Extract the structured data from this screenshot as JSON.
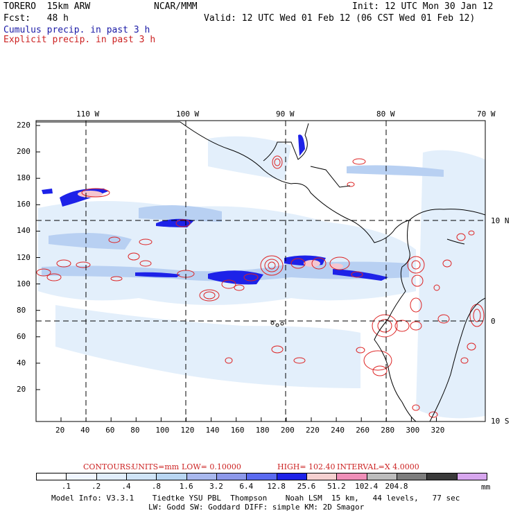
{
  "header": {
    "model": "TORERO  15km ARW",
    "center": "NCAR/MMM",
    "init": "Init: 12 UTC Mon 30 Jan 12",
    "fcst": "Fcst:   48 h",
    "valid": "Valid: 12 UTC Wed 01 Feb 12 (06 CST Wed 01 Feb 12)",
    "legend_cumulus": "Cumulus precip. in past 3 h",
    "legend_explicit": "Explicit precip. in past 3 h"
  },
  "map": {
    "lon_labels": [
      "110 W",
      "100 W",
      "90 W",
      "80 W",
      "70 W"
    ],
    "lat_labels": [
      "10 N",
      "0",
      "10 S"
    ],
    "y_ticks": [
      "220",
      "200",
      "180",
      "160",
      "140",
      "120",
      "100",
      "80",
      "60",
      "40",
      "20"
    ],
    "x_ticks": [
      "20",
      "40",
      "60",
      "80",
      "100",
      "120",
      "140",
      "160",
      "180",
      "200",
      "220",
      "240",
      "260",
      "280",
      "300",
      "320"
    ],
    "colors": {
      "coast": "#000000",
      "grid": "#000000",
      "explicit": "#dd2222"
    }
  },
  "contours_line": {
    "label": "CONTOURS:",
    "units": "UNITS=mm",
    "low": "LOW= 0.10000",
    "high": "HIGH=  102.40",
    "interval": "INTERVAL=X  4.0000"
  },
  "colorbar": {
    "colors": [
      "#ffffff",
      "#f0f6ff",
      "#e1eefc",
      "#cfe4f7",
      "#b8d6f2",
      "#a8b8ee",
      "#8c98ea",
      "#5a6af0",
      "#1d22e8",
      "#f5d0d0",
      "#ef8fb8",
      "#bdbdbd",
      "#7d7d7d",
      "#3a3a3a",
      "#d7a6ee"
    ],
    "labels": [
      ".1",
      ".2",
      ".4",
      ".8",
      "1.6",
      "3.2",
      "6.4",
      "12.8",
      "25.6",
      "51.2",
      "102.4",
      "204.8"
    ],
    "unit": "mm"
  },
  "footer": {
    "line1": "Model Info: V3.3.1    Tiedtke YSU PBL  Thompson    Noah LSM  15 km,   44 levels,   77 sec",
    "line2": "LW: Godd SW: Goddard DIFF: simple KM: 2D Smagor"
  }
}
